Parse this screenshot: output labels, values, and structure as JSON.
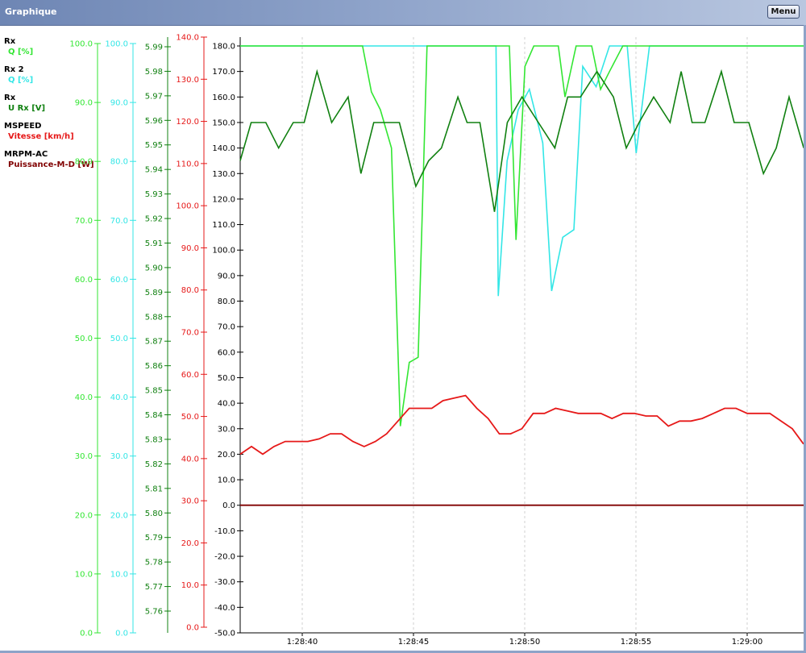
{
  "window": {
    "title": "Graphique",
    "menu_label": "Menu"
  },
  "chart_data": {
    "type": "line",
    "x": [
      "1:28:37.5",
      "1:28:38",
      "1:28:38.5",
      "1:28:39",
      "1:28:39.5",
      "1:28:40",
      "1:28:40.5",
      "1:28:41",
      "1:28:41.5",
      "1:28:42",
      "1:28:42.5",
      "1:28:43",
      "1:28:43.5",
      "1:28:44",
      "1:28:44.5",
      "1:28:45",
      "1:28:45.5",
      "1:28:46",
      "1:28:46.5",
      "1:28:47",
      "1:28:47.5",
      "1:28:48",
      "1:28:48.5",
      "1:28:49",
      "1:28:49.5",
      "1:28:50",
      "1:28:50.5",
      "1:28:51",
      "1:28:51.5",
      "1:28:52",
      "1:28:52.5",
      "1:28:53",
      "1:28:53.5",
      "1:28:54",
      "1:28:54.5",
      "1:28:55",
      "1:28:55.5",
      "1:28:56",
      "1:28:56.5",
      "1:28:57",
      "1:28:57.5",
      "1:28:58",
      "1:28:58.5",
      "1:28:59",
      "1:28:59.5",
      "1:29:00",
      "1:29:00.5",
      "1:29:01",
      "1:29:01.5",
      "1:29:02",
      "1:29:02.5"
    ],
    "x_ticks": [
      "1:28:40",
      "1:28:45",
      "1:28:50",
      "1:28:55",
      "1:29:00"
    ],
    "legend": [
      {
        "group": "Rx",
        "label": "Q [%]",
        "color": "#33e633"
      },
      {
        "group": "Rx 2",
        "label": "Q [%]",
        "color": "#33e6e6"
      },
      {
        "group": "Rx",
        "label": "U Rx [V]",
        "color": "#108010"
      },
      {
        "group": "MSPEED",
        "label": "Vitesse [km/h]",
        "color": "#e61919"
      },
      {
        "group": "MRPM-AC",
        "label": "Puissance-M-D [W]",
        "color": "#800000"
      }
    ],
    "axes": [
      {
        "id": "q1",
        "color": "#33e633",
        "min": 0,
        "max": 100,
        "ticks": [
          "0.0",
          "10.0",
          "20.0",
          "30.0",
          "40.0",
          "50.0",
          "60.0",
          "70.0",
          "80.0",
          "90.0",
          "100.0"
        ]
      },
      {
        "id": "q2",
        "color": "#33e6e6",
        "min": 0,
        "max": 100,
        "ticks": [
          "0.0",
          "10.0",
          "20.0",
          "30.0",
          "40.0",
          "50.0",
          "60.0",
          "70.0",
          "80.0",
          "90.0",
          "100.0"
        ]
      },
      {
        "id": "u",
        "color": "#108010",
        "min": 5.75,
        "max": 5.995,
        "ticks": [
          "5.76",
          "5.77",
          "5.78",
          "5.79",
          "5.80",
          "5.81",
          "5.82",
          "5.83",
          "5.84",
          "5.85",
          "5.86",
          "5.87",
          "5.88",
          "5.89",
          "5.90",
          "5.91",
          "5.92",
          "5.93",
          "5.94",
          "5.95",
          "5.96",
          "5.97",
          "5.98",
          "5.99"
        ]
      },
      {
        "id": "v",
        "color": "#e61919",
        "min": 0,
        "max": 140,
        "ticks": [
          "0.0",
          "10.0",
          "20.0",
          "30.0",
          "40.0",
          "50.0",
          "60.0",
          "70.0",
          "80.0",
          "90.0",
          "100.0",
          "110.0",
          "120.0",
          "130.0",
          "140.0"
        ]
      },
      {
        "id": "main",
        "color": "#000000",
        "min": -50,
        "max": 180,
        "ticks": [
          "-50.0",
          "-40.0",
          "-30.0",
          "-20.0",
          "-10.0",
          "0.0",
          "10.0",
          "20.0",
          "30.0",
          "40.0",
          "50.0",
          "60.0",
          "70.0",
          "80.0",
          "90.0",
          "100.0",
          "110.0",
          "120.0",
          "130.0",
          "140.0",
          "150.0",
          "160.0",
          "170.0",
          "180.0"
        ]
      }
    ],
    "ylim": [
      -50,
      180
    ],
    "grid": "vertical",
    "series": [
      {
        "axis": "main",
        "color": "#33e633",
        "values": [
          180,
          180,
          180,
          180,
          180,
          180,
          180,
          180,
          180,
          180,
          180,
          180,
          180,
          162,
          155,
          140,
          30,
          55,
          58,
          180,
          180,
          180,
          180,
          180,
          180,
          180,
          180,
          180,
          180,
          180,
          180,
          180,
          180,
          180,
          180,
          180,
          180,
          180,
          180,
          180,
          180,
          180,
          180,
          180,
          180,
          180,
          180,
          180,
          180,
          180,
          180
        ]
      },
      {
        "axis": "main",
        "color": "#33e6e6",
        "values": [
          180,
          180,
          180,
          180,
          180,
          180,
          180,
          180,
          180,
          180,
          180,
          180,
          180,
          180,
          180,
          180,
          180,
          180,
          180,
          180,
          180,
          180,
          180,
          180,
          180,
          180,
          180,
          180,
          180,
          180,
          180,
          180,
          180,
          180,
          180,
          180,
          180,
          180,
          180,
          180,
          180,
          180,
          180,
          180,
          180,
          180,
          180,
          180,
          180,
          180,
          180
        ]
      },
      {
        "axis": "main",
        "color": "#e61919",
        "values": [
          20,
          23,
          20,
          23,
          25,
          25,
          25,
          26,
          28,
          28,
          25,
          23,
          25,
          28,
          33,
          38,
          38,
          38,
          41,
          42,
          43,
          38,
          34,
          28,
          28,
          30,
          36,
          36,
          38,
          37,
          36,
          36,
          36,
          34,
          36,
          36,
          35,
          35,
          31,
          33,
          33,
          34,
          36,
          38,
          38,
          36,
          36,
          36,
          33,
          30,
          24
        ]
      },
      {
        "axis": "main",
        "color": "#800000",
        "values": [
          0,
          0,
          0,
          0,
          0,
          0,
          0,
          0,
          0,
          0,
          0,
          0,
          0,
          0,
          0,
          0,
          0,
          0,
          0,
          0,
          0,
          0,
          0,
          0,
          0,
          0,
          0,
          0,
          0,
          0,
          0,
          0,
          0,
          0,
          0,
          0,
          0,
          0,
          0,
          0,
          0,
          0,
          0,
          0,
          0,
          0,
          0,
          0,
          0,
          0,
          0
        ]
      }
    ],
    "excursions": [
      {
        "axis": "main",
        "color": "#33e633",
        "x": [
          16.0,
          18.0,
          20.0,
          22.0,
          24.0,
          25.2,
          25.9,
          26.6,
          27.4,
          28.2,
          29.0,
          30.4,
          31.0,
          32.0,
          34.8,
          35.6,
          36.2,
          37.5,
          38.3,
          39.0,
          39.4
        ],
        "values": [
          180,
          180,
          180,
          180,
          180,
          180,
          180,
          180,
          180,
          180,
          180,
          180,
          180,
          180,
          180,
          180,
          180,
          180,
          180,
          180,
          180
        ]
      }
    ],
    "u_rx": {
      "axis": "main",
      "color": "#108010",
      "x": [
        0,
        0.6,
        1.4,
        2.1,
        2.9,
        3.5,
        4.2,
        5.0,
        5.9,
        6.6,
        7.3,
        8.0,
        8.7,
        9.6,
        10.3,
        11.0,
        11.9,
        12.4,
        13.1,
        13.9,
        14.6,
        15.4,
        16.3,
        17.2,
        17.9,
        18.6,
        19.5,
        20.4,
        21.1,
        21.8,
        22.6,
        23.5,
        24.1,
        24.7,
        25.4,
        26.3,
        27.0,
        27.8,
        28.6,
        29.3,
        30.0,
        30.8
      ],
      "values": [
        135,
        150,
        150,
        140,
        150,
        150,
        170,
        150,
        160,
        130,
        150,
        150,
        150,
        125,
        135,
        140,
        160,
        150,
        150,
        115,
        150,
        160,
        150,
        140,
        160,
        160,
        170,
        160,
        140,
        150,
        160,
        150,
        170,
        150,
        150,
        170,
        150,
        150,
        130,
        140,
        160,
        140
      ]
    }
  }
}
